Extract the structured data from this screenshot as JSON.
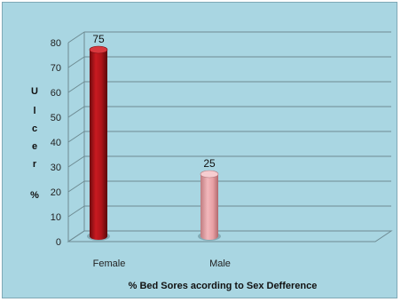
{
  "chart_data": {
    "type": "bar",
    "categories": [
      "Female",
      "Male"
    ],
    "values": [
      75,
      25
    ],
    "data_labels": [
      "75",
      "25"
    ],
    "xlabel": "% Bed Sores acording to Sex Defference",
    "ylabel": "U l c e r %",
    "ylim": [
      0,
      80
    ],
    "yticks": [
      0,
      10,
      20,
      30,
      40,
      50,
      60,
      70,
      80
    ],
    "grid": true,
    "style": "3d-cylinder",
    "colors": {
      "background": "#a9d6e2",
      "grid": "#6e8b93",
      "Female": "#b0141a",
      "Male": "#e8a0a4"
    }
  }
}
